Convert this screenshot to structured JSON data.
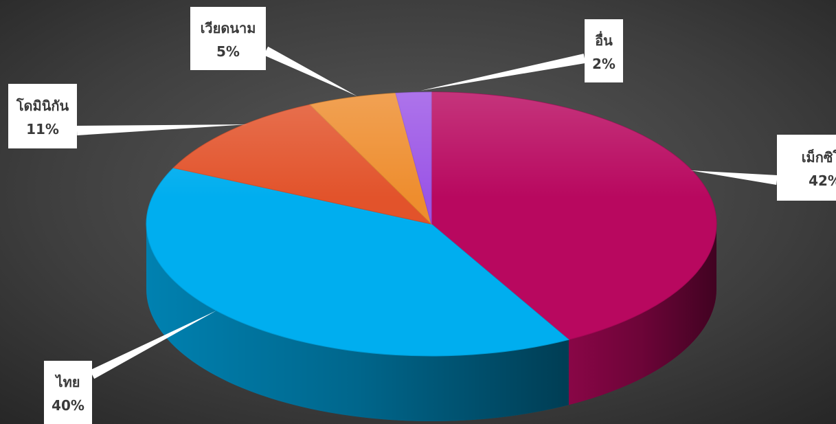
{
  "chart_data": {
    "type": "pie",
    "style": "3d-exploded-none",
    "title": "",
    "slices": [
      {
        "label": "เม็กซิโก",
        "value": 42,
        "display": "42%",
        "color": "#B8085F",
        "leader": "right"
      },
      {
        "label": "ไทย",
        "value": 40,
        "display": "40%",
        "color": "#00AEEF",
        "leader": "bottom-left"
      },
      {
        "label": "โดมินิกัน",
        "value": 11,
        "display": "11%",
        "color": "#E2532B",
        "leader": "left"
      },
      {
        "label": "เวียดนาม",
        "value": 5,
        "display": "5%",
        "color": "#EE8D2E",
        "leader": "top"
      },
      {
        "label": "อื่น",
        "value": 2,
        "display": "2%",
        "color": "#9B55E6",
        "leader": "top-right"
      }
    ],
    "legend": "none",
    "data_labels": "callout boxes with category name and percent"
  },
  "colors": {
    "background_center": "#5a5a5a",
    "background_edge": "#2a2a2a",
    "callout_fill": "#ffffff",
    "callout_text": "#3a3a3a"
  }
}
